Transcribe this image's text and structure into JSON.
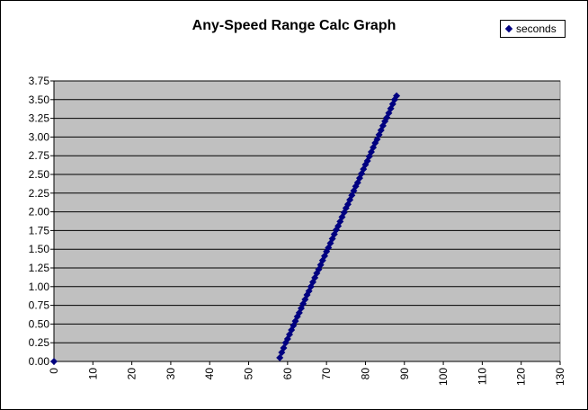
{
  "chart_data": {
    "type": "scatter",
    "title": "Any-Speed Range Calc Graph",
    "xlabel": "",
    "ylabel": "",
    "xlim": [
      0,
      130
    ],
    "ylim": [
      0,
      3.75
    ],
    "x_ticks": [
      "0",
      "10",
      "20",
      "30",
      "40",
      "50",
      "60",
      "70",
      "80",
      "90",
      "100",
      "110",
      "120",
      "130"
    ],
    "y_ticks": [
      "0.00",
      "0.25",
      "0.50",
      "0.75",
      "1.00",
      "1.25",
      "1.50",
      "1.75",
      "2.00",
      "2.25",
      "2.50",
      "2.75",
      "3.00",
      "3.25",
      "3.50",
      "3.75"
    ],
    "grid": true,
    "legend_position": "top-right",
    "colors": {
      "plot_area": "#c0c0c0",
      "series": "#000080",
      "grid": "#000000"
    },
    "series": [
      {
        "name": "seconds",
        "points": [
          [
            0,
            0
          ],
          [
            58,
            0.05
          ],
          [
            58.5,
            0.12
          ],
          [
            59,
            0.18
          ],
          [
            59.5,
            0.25
          ],
          [
            60,
            0.3
          ],
          [
            60.5,
            0.36
          ],
          [
            61,
            0.42
          ],
          [
            61.5,
            0.48
          ],
          [
            62,
            0.54
          ],
          [
            62.5,
            0.6
          ],
          [
            63,
            0.65
          ],
          [
            63.5,
            0.71
          ],
          [
            64,
            0.77
          ],
          [
            64.5,
            0.83
          ],
          [
            65,
            0.89
          ],
          [
            65.5,
            0.94
          ],
          [
            66,
            1.0
          ],
          [
            66.5,
            1.06
          ],
          [
            67,
            1.12
          ],
          [
            67.5,
            1.18
          ],
          [
            68,
            1.23
          ],
          [
            68.5,
            1.29
          ],
          [
            69,
            1.35
          ],
          [
            69.5,
            1.41
          ],
          [
            70,
            1.47
          ],
          [
            70.5,
            1.52
          ],
          [
            71,
            1.58
          ],
          [
            71.5,
            1.64
          ],
          [
            72,
            1.7
          ],
          [
            72.5,
            1.76
          ],
          [
            73,
            1.81
          ],
          [
            73.5,
            1.87
          ],
          [
            74,
            1.93
          ],
          [
            74.5,
            1.99
          ],
          [
            75,
            2.05
          ],
          [
            75.5,
            2.1
          ],
          [
            76,
            2.16
          ],
          [
            76.5,
            2.22
          ],
          [
            77,
            2.28
          ],
          [
            77.5,
            2.34
          ],
          [
            78,
            2.39
          ],
          [
            78.5,
            2.45
          ],
          [
            79,
            2.51
          ],
          [
            79.5,
            2.57
          ],
          [
            80,
            2.63
          ],
          [
            80.5,
            2.68
          ],
          [
            81,
            2.74
          ],
          [
            81.5,
            2.8
          ],
          [
            82,
            2.86
          ],
          [
            82.5,
            2.92
          ],
          [
            83,
            2.97
          ],
          [
            83.5,
            3.03
          ],
          [
            84,
            3.09
          ],
          [
            84.5,
            3.15
          ],
          [
            85,
            3.21
          ],
          [
            85.5,
            3.26
          ],
          [
            86,
            3.32
          ],
          [
            86.5,
            3.38
          ],
          [
            87,
            3.44
          ],
          [
            87.5,
            3.5
          ],
          [
            88,
            3.55
          ]
        ]
      }
    ]
  }
}
